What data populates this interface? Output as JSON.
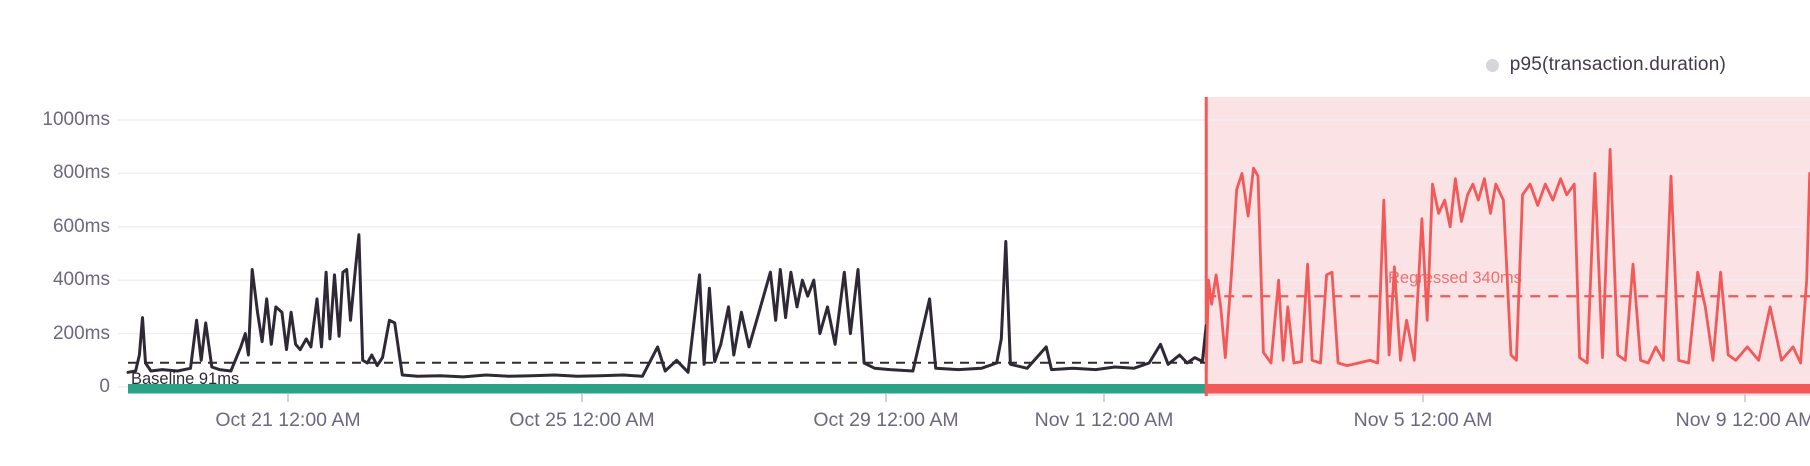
{
  "legend": {
    "label": "p95(transaction.duration)"
  },
  "annotations": {
    "baseline_label": "Baseline 91ms",
    "regressed_label": "Regressed 340ms",
    "baseline_value_ms": 91,
    "regressed_value_ms": 340
  },
  "colors": {
    "series_baseline": "#2f2936",
    "series_regressed": "#f25a5a",
    "regression_bg": "#fbe2e4",
    "baseline_bar": "#2ba185",
    "gridline": "#f0edf3",
    "axis_text": "#6e6684",
    "tick": "#c9c3d1",
    "legend_text": "#42394f",
    "legend_marker": "#d7d4dc"
  },
  "chart_data": {
    "type": "line",
    "title": "",
    "series_name": "p95(transaction.duration)",
    "y_unit": "ms",
    "ylim": [
      0,
      1000
    ],
    "grid": true,
    "legend_position": "top-right",
    "x_unit": "days since Oct 19 12:00 AM",
    "breakpoint_day": 14.05,
    "y_ticks": [
      {
        "ms": 0,
        "label": "0"
      },
      {
        "ms": 200,
        "label": "200ms"
      },
      {
        "ms": 400,
        "label": "400ms"
      },
      {
        "ms": 600,
        "label": "600ms"
      },
      {
        "ms": 800,
        "label": "800ms"
      },
      {
        "ms": 1000,
        "label": "1000ms"
      }
    ],
    "x_ticks": [
      {
        "day": 2,
        "label": "Oct 21 12:00 AM"
      },
      {
        "day": 6,
        "label": "Oct 25 12:00 AM"
      },
      {
        "day": 10,
        "label": "Oct 29 12:00 AM"
      },
      {
        "day": 13,
        "label": "Nov 1 12:00 AM"
      },
      {
        "day": 17,
        "label": "Nov 5 12:00 AM"
      },
      {
        "day": 21,
        "label": "Nov 9 12:00 AM"
      }
    ],
    "baseline": {
      "mean_ms": 91,
      "points": [
        [
          -0.1,
          55
        ],
        [
          0.0,
          60
        ],
        [
          0.05,
          120
        ],
        [
          0.09,
          260
        ],
        [
          0.13,
          90
        ],
        [
          0.2,
          60
        ],
        [
          0.35,
          65
        ],
        [
          0.55,
          60
        ],
        [
          0.72,
          70
        ],
        [
          0.8,
          250
        ],
        [
          0.86,
          100
        ],
        [
          0.92,
          240
        ],
        [
          1.0,
          75
        ],
        [
          1.1,
          65
        ],
        [
          1.25,
          60
        ],
        [
          1.38,
          150
        ],
        [
          1.44,
          200
        ],
        [
          1.48,
          120
        ],
        [
          1.53,
          440
        ],
        [
          1.6,
          280
        ],
        [
          1.66,
          170
        ],
        [
          1.72,
          330
        ],
        [
          1.78,
          160
        ],
        [
          1.84,
          300
        ],
        [
          1.92,
          280
        ],
        [
          1.98,
          140
        ],
        [
          2.04,
          280
        ],
        [
          2.1,
          160
        ],
        [
          2.16,
          140
        ],
        [
          2.24,
          180
        ],
        [
          2.3,
          150
        ],
        [
          2.38,
          330
        ],
        [
          2.44,
          150
        ],
        [
          2.5,
          430
        ],
        [
          2.55,
          180
        ],
        [
          2.61,
          420
        ],
        [
          2.67,
          190
        ],
        [
          2.72,
          430
        ],
        [
          2.77,
          440
        ],
        [
          2.82,
          250
        ],
        [
          2.88,
          430
        ],
        [
          2.93,
          570
        ],
        [
          2.98,
          100
        ],
        [
          3.04,
          90
        ],
        [
          3.1,
          120
        ],
        [
          3.17,
          80
        ],
        [
          3.24,
          110
        ],
        [
          3.33,
          250
        ],
        [
          3.4,
          240
        ],
        [
          3.5,
          45
        ],
        [
          3.7,
          40
        ],
        [
          4.0,
          42
        ],
        [
          4.3,
          38
        ],
        [
          4.6,
          45
        ],
        [
          4.9,
          40
        ],
        [
          5.2,
          42
        ],
        [
          5.5,
          45
        ],
        [
          5.8,
          40
        ],
        [
          6.1,
          42
        ],
        [
          6.4,
          45
        ],
        [
          6.65,
          40
        ],
        [
          6.85,
          150
        ],
        [
          6.95,
          60
        ],
        [
          7.1,
          100
        ],
        [
          7.25,
          55
        ],
        [
          7.4,
          420
        ],
        [
          7.46,
          85
        ],
        [
          7.53,
          370
        ],
        [
          7.6,
          95
        ],
        [
          7.68,
          160
        ],
        [
          7.78,
          300
        ],
        [
          7.85,
          120
        ],
        [
          7.95,
          280
        ],
        [
          8.05,
          150
        ],
        [
          8.2,
          300
        ],
        [
          8.33,
          430
        ],
        [
          8.4,
          250
        ],
        [
          8.46,
          440
        ],
        [
          8.53,
          260
        ],
        [
          8.6,
          430
        ],
        [
          8.68,
          300
        ],
        [
          8.75,
          400
        ],
        [
          8.82,
          340
        ],
        [
          8.9,
          400
        ],
        [
          8.98,
          200
        ],
        [
          9.08,
          300
        ],
        [
          9.18,
          160
        ],
        [
          9.3,
          430
        ],
        [
          9.38,
          200
        ],
        [
          9.48,
          440
        ],
        [
          9.56,
          90
        ],
        [
          9.7,
          70
        ],
        [
          9.9,
          65
        ],
        [
          10.2,
          60
        ],
        [
          10.42,
          330
        ],
        [
          10.5,
          70
        ],
        [
          10.8,
          65
        ],
        [
          11.1,
          70
        ],
        [
          11.3,
          90
        ],
        [
          11.36,
          180
        ],
        [
          11.42,
          545
        ],
        [
          11.48,
          85
        ],
        [
          11.7,
          70
        ],
        [
          11.95,
          150
        ],
        [
          12.02,
          65
        ],
        [
          12.3,
          70
        ],
        [
          12.6,
          65
        ],
        [
          12.85,
          75
        ],
        [
          13.1,
          70
        ],
        [
          13.3,
          90
        ],
        [
          13.45,
          160
        ],
        [
          13.55,
          85
        ],
        [
          13.7,
          120
        ],
        [
          13.8,
          90
        ],
        [
          13.9,
          110
        ],
        [
          14.0,
          95
        ],
        [
          14.05,
          230
        ]
      ]
    },
    "regressed": {
      "mean_ms": 340,
      "points": [
        [
          14.05,
          60
        ],
        [
          14.08,
          400
        ],
        [
          14.12,
          310
        ],
        [
          14.18,
          420
        ],
        [
          14.24,
          300
        ],
        [
          14.3,
          110
        ],
        [
          14.38,
          420
        ],
        [
          14.45,
          740
        ],
        [
          14.52,
          800
        ],
        [
          14.6,
          640
        ],
        [
          14.67,
          820
        ],
        [
          14.73,
          790
        ],
        [
          14.8,
          130
        ],
        [
          14.9,
          90
        ],
        [
          15.0,
          400
        ],
        [
          15.06,
          100
        ],
        [
          15.12,
          300
        ],
        [
          15.2,
          90
        ],
        [
          15.3,
          95
        ],
        [
          15.38,
          460
        ],
        [
          15.44,
          100
        ],
        [
          15.55,
          90
        ],
        [
          15.63,
          420
        ],
        [
          15.7,
          430
        ],
        [
          15.78,
          90
        ],
        [
          15.9,
          80
        ],
        [
          16.05,
          90
        ],
        [
          16.2,
          100
        ],
        [
          16.3,
          90
        ],
        [
          16.38,
          700
        ],
        [
          16.45,
          120
        ],
        [
          16.52,
          450
        ],
        [
          16.6,
          100
        ],
        [
          16.68,
          250
        ],
        [
          16.78,
          100
        ],
        [
          16.88,
          630
        ],
        [
          16.95,
          250
        ],
        [
          17.02,
          760
        ],
        [
          17.1,
          650
        ],
        [
          17.18,
          700
        ],
        [
          17.25,
          600
        ],
        [
          17.32,
          780
        ],
        [
          17.4,
          620
        ],
        [
          17.48,
          720
        ],
        [
          17.55,
          760
        ],
        [
          17.62,
          700
        ],
        [
          17.7,
          780
        ],
        [
          17.78,
          650
        ],
        [
          17.85,
          760
        ],
        [
          17.95,
          700
        ],
        [
          18.05,
          120
        ],
        [
          18.12,
          100
        ],
        [
          18.2,
          720
        ],
        [
          18.3,
          760
        ],
        [
          18.4,
          680
        ],
        [
          18.5,
          760
        ],
        [
          18.6,
          700
        ],
        [
          18.7,
          780
        ],
        [
          18.78,
          720
        ],
        [
          18.88,
          760
        ],
        [
          18.95,
          110
        ],
        [
          19.05,
          90
        ],
        [
          19.15,
          800
        ],
        [
          19.25,
          110
        ],
        [
          19.35,
          890
        ],
        [
          19.45,
          120
        ],
        [
          19.55,
          100
        ],
        [
          19.65,
          460
        ],
        [
          19.75,
          100
        ],
        [
          19.85,
          90
        ],
        [
          19.95,
          150
        ],
        [
          20.05,
          100
        ],
        [
          20.15,
          790
        ],
        [
          20.25,
          100
        ],
        [
          20.38,
          90
        ],
        [
          20.5,
          430
        ],
        [
          20.6,
          300
        ],
        [
          20.7,
          100
        ],
        [
          20.8,
          430
        ],
        [
          20.9,
          120
        ],
        [
          21.0,
          100
        ],
        [
          21.15,
          150
        ],
        [
          21.3,
          100
        ],
        [
          21.45,
          300
        ],
        [
          21.6,
          100
        ],
        [
          21.75,
          150
        ],
        [
          21.85,
          90
        ],
        [
          21.93,
          400
        ],
        [
          21.97,
          800
        ]
      ]
    }
  }
}
